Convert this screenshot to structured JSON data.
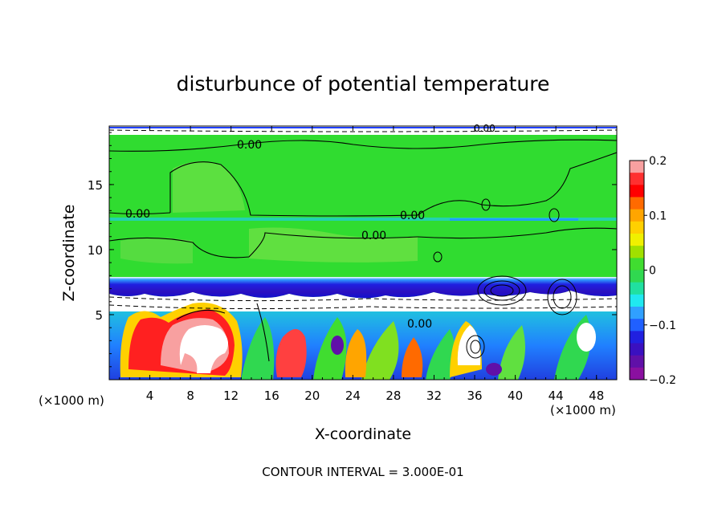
{
  "chart_data": {
    "type": "heatmap",
    "title": "disturbunce of potential temperature",
    "xlabel": "X-coordinate",
    "ylabel": "Z-coordinate",
    "x_unit_left": "(×1000 m)",
    "x_unit_right": "(×1000 m)",
    "xlim": [
      0,
      50
    ],
    "ylim": [
      0,
      19.5
    ],
    "x_ticks": [
      "4",
      "8",
      "12",
      "16",
      "20",
      "24",
      "28",
      "32",
      "36",
      "40",
      "44",
      "48"
    ],
    "y_ticks": [
      "5",
      "10",
      "15"
    ],
    "colorbar": {
      "range": [
        -0.2,
        0.2
      ],
      "tick_labels": [
        "0.2",
        "0.1",
        "0",
        "−0.1",
        "−0.2"
      ],
      "colors": [
        "#f8a0a0",
        "#ff3030",
        "#ff0000",
        "#ff6a00",
        "#ffa500",
        "#ffd000",
        "#f0f000",
        "#a0e000",
        "#40dd30",
        "#30d850",
        "#20e0a0",
        "#20e8f0",
        "#30a0ff",
        "#2060ff",
        "#2020e0",
        "#3a10c0",
        "#6010a8",
        "#8a10a0"
      ]
    },
    "contour_labels": [
      "0.00",
      "0.00",
      "0.00",
      "0.00",
      "0.00",
      "0.00"
    ],
    "footer": "CONTOUR INTERVAL = 3.000E-01"
  }
}
